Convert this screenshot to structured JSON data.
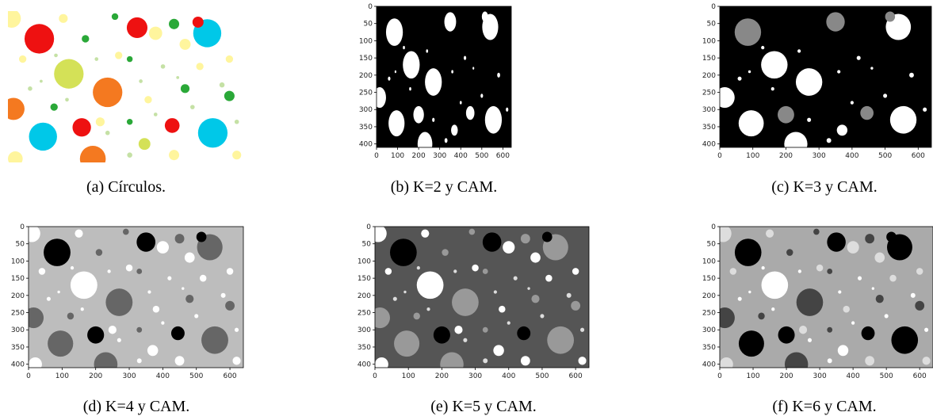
{
  "panels": [
    {
      "caption": "(a) Círculos."
    },
    {
      "caption": "(b) K=2 y CAM.",
      "xlim": [
        0,
        640
      ],
      "ylim": [
        0,
        410
      ],
      "xticks": [
        0,
        100,
        200,
        300,
        400,
        500,
        600
      ],
      "yticks": [
        0,
        50,
        100,
        150,
        200,
        250,
        300,
        350,
        400
      ]
    },
    {
      "caption": "(c) K=3 y CAM.",
      "xlim": [
        0,
        640
      ],
      "ylim": [
        0,
        410
      ],
      "xticks": [
        0,
        100,
        200,
        300,
        400,
        500,
        600
      ],
      "yticks": [
        0,
        50,
        100,
        150,
        200,
        250,
        300,
        350,
        400
      ]
    },
    {
      "caption": "(d) K=4 y CAM.",
      "xlim": [
        0,
        640
      ],
      "ylim": [
        0,
        410
      ],
      "xticks": [
        0,
        100,
        200,
        300,
        400,
        500,
        600
      ],
      "yticks": [
        0,
        50,
        100,
        150,
        200,
        250,
        300,
        350,
        400
      ]
    },
    {
      "caption": "(e) K=5 y CAM.",
      "xlim": [
        0,
        640
      ],
      "ylim": [
        0,
        410
      ],
      "xticks": [
        0,
        100,
        200,
        300,
        400,
        500,
        600
      ],
      "yticks": [
        0,
        50,
        100,
        150,
        200,
        250,
        300,
        350,
        400
      ]
    },
    {
      "caption": "(f) K=6 y CAM.",
      "xlim": [
        0,
        640
      ],
      "ylim": [
        0,
        410
      ],
      "xticks": [
        0,
        100,
        200,
        300,
        400,
        500,
        600
      ],
      "yticks": [
        0,
        50,
        100,
        150,
        200,
        250,
        300,
        350,
        400
      ]
    }
  ]
}
